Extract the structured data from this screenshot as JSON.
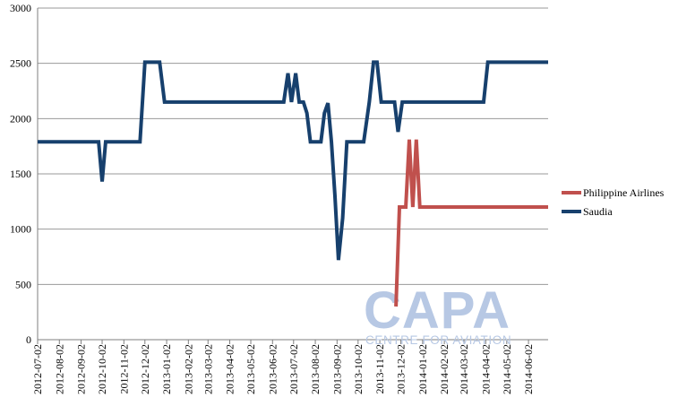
{
  "watermark": {
    "main": "CAPA",
    "sub": "CENTRE FOR AVIATION"
  },
  "chart_data": {
    "type": "line",
    "title": "",
    "xlabel": "",
    "ylabel": "",
    "ylim": [
      0,
      3000
    ],
    "yticks": [
      0,
      500,
      1000,
      1500,
      2000,
      2500,
      3000
    ],
    "grid": true,
    "legend_position": "right",
    "x_start": "2012-07-02",
    "x_end": "2014-06-30",
    "x_tick_labels": [
      "2012-07-02",
      "2012-08-02",
      "2012-09-02",
      "2012-10-02",
      "2012-11-02",
      "2012-12-02",
      "2013-01-02",
      "2013-02-02",
      "2013-03-02",
      "2013-04-02",
      "2013-05-02",
      "2013-06-02",
      "2013-07-02",
      "2013-08-02",
      "2013-09-02",
      "2013-10-02",
      "2013-11-02",
      "2013-12-02",
      "2014-01-02",
      "2014-02-02",
      "2014-03-02",
      "2014-04-02",
      "2014-05-02",
      "2014-06-02"
    ],
    "series": [
      {
        "name": "Philippine Airlines",
        "color": "#c0504d",
        "points": [
          [
            "2013-11-25",
            300
          ],
          [
            "2013-11-30",
            1200
          ],
          [
            "2013-12-09",
            1200
          ],
          [
            "2013-12-14",
            1810
          ],
          [
            "2013-12-19",
            1200
          ],
          [
            "2013-12-24",
            1810
          ],
          [
            "2013-12-29",
            1200
          ],
          [
            "2014-06-30",
            1200
          ]
        ]
      },
      {
        "name": "Saudia",
        "color": "#17406d",
        "points": [
          [
            "2012-07-02",
            1790
          ],
          [
            "2012-09-27",
            1790
          ],
          [
            "2012-10-02",
            1430
          ],
          [
            "2012-10-07",
            1790
          ],
          [
            "2012-11-25",
            1790
          ],
          [
            "2012-12-02",
            2510
          ],
          [
            "2012-12-23",
            2510
          ],
          [
            "2012-12-30",
            2150
          ],
          [
            "2013-06-18",
            2150
          ],
          [
            "2013-06-24",
            2410
          ],
          [
            "2013-06-29",
            2150
          ],
          [
            "2013-07-05",
            2410
          ],
          [
            "2013-07-10",
            2150
          ],
          [
            "2013-07-16",
            2150
          ],
          [
            "2013-07-21",
            2050
          ],
          [
            "2013-07-26",
            1790
          ],
          [
            "2013-08-10",
            1790
          ],
          [
            "2013-08-15",
            2050
          ],
          [
            "2013-08-20",
            2140
          ],
          [
            "2013-08-25",
            1790
          ],
          [
            "2013-08-30",
            1300
          ],
          [
            "2013-09-04",
            720
          ],
          [
            "2013-09-10",
            1100
          ],
          [
            "2013-09-16",
            1790
          ],
          [
            "2013-10-10",
            1790
          ],
          [
            "2013-10-18",
            2150
          ],
          [
            "2013-10-24",
            2510
          ],
          [
            "2013-10-29",
            2510
          ],
          [
            "2013-11-04",
            2150
          ],
          [
            "2013-11-23",
            2150
          ],
          [
            "2013-11-28",
            1880
          ],
          [
            "2013-12-04",
            2150
          ],
          [
            "2014-03-30",
            2150
          ],
          [
            "2014-04-05",
            2510
          ],
          [
            "2014-06-30",
            2510
          ]
        ]
      }
    ]
  }
}
